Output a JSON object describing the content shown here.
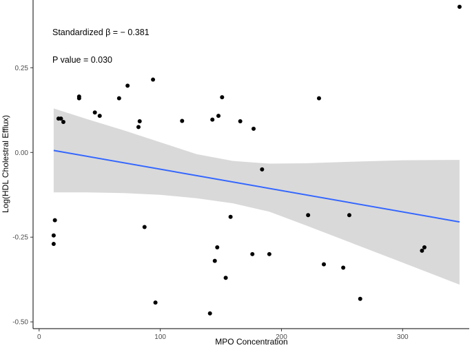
{
  "chart_data": {
    "type": "scatter",
    "title": "",
    "xlabel": "MPO Concentration",
    "ylabel": "Log(HDL Cholestral Efflux)",
    "xlim": [
      -5,
      355
    ],
    "ylim": [
      -0.52,
      0.45
    ],
    "x_ticks": [
      0,
      100,
      200,
      300
    ],
    "x_tick_labels": [
      "0",
      "100",
      "200",
      "300"
    ],
    "y_ticks": [
      0.25,
      0.0,
      -0.25,
      -0.5
    ],
    "y_tick_labels": [
      "0.25",
      "0.00",
      "-0.25",
      "-0.50"
    ],
    "grid": false,
    "annotations": [
      "Standardized β = − 0.381",
      "P value = 0.030"
    ],
    "colors": {
      "points": "#000000",
      "regression_line": "#3366ff",
      "confidence_band": "#d9d9d9"
    },
    "points": [
      {
        "x": 12,
        "y": -0.245
      },
      {
        "x": 12,
        "y": -0.27
      },
      {
        "x": 13,
        "y": -0.2
      },
      {
        "x": 16,
        "y": 0.1
      },
      {
        "x": 18,
        "y": 0.1
      },
      {
        "x": 20,
        "y": 0.09
      },
      {
        "x": 33,
        "y": 0.165
      },
      {
        "x": 33,
        "y": 0.16
      },
      {
        "x": 46,
        "y": 0.118
      },
      {
        "x": 50,
        "y": 0.108
      },
      {
        "x": 66,
        "y": 0.16
      },
      {
        "x": 73,
        "y": 0.197
      },
      {
        "x": 82,
        "y": 0.075
      },
      {
        "x": 83,
        "y": 0.092
      },
      {
        "x": 87,
        "y": -0.22
      },
      {
        "x": 94,
        "y": 0.215
      },
      {
        "x": 96,
        "y": -0.443
      },
      {
        "x": 118,
        "y": 0.093
      },
      {
        "x": 141,
        "y": -0.475
      },
      {
        "x": 143,
        "y": 0.097
      },
      {
        "x": 145,
        "y": -0.32
      },
      {
        "x": 147,
        "y": -0.28
      },
      {
        "x": 148,
        "y": 0.108
      },
      {
        "x": 151,
        "y": 0.163
      },
      {
        "x": 154,
        "y": -0.37
      },
      {
        "x": 158,
        "y": -0.19
      },
      {
        "x": 166,
        "y": 0.092
      },
      {
        "x": 176,
        "y": -0.3
      },
      {
        "x": 177,
        "y": 0.07
      },
      {
        "x": 184,
        "y": -0.05
      },
      {
        "x": 190,
        "y": -0.3
      },
      {
        "x": 222,
        "y": -0.185
      },
      {
        "x": 231,
        "y": 0.16
      },
      {
        "x": 235,
        "y": -0.33
      },
      {
        "x": 251,
        "y": -0.34
      },
      {
        "x": 256,
        "y": -0.185
      },
      {
        "x": 265,
        "y": -0.432
      },
      {
        "x": 316,
        "y": -0.29
      },
      {
        "x": 318,
        "y": -0.28
      },
      {
        "x": 347,
        "y": 0.43
      }
    ],
    "regression": {
      "line": [
        {
          "x": 12,
          "y": 0.006
        },
        {
          "x": 347,
          "y": -0.205
        }
      ],
      "band_upper": [
        {
          "x": 12,
          "y": 0.13
        },
        {
          "x": 40,
          "y": 0.098
        },
        {
          "x": 70,
          "y": 0.065
        },
        {
          "x": 100,
          "y": 0.03
        },
        {
          "x": 130,
          "y": -0.005
        },
        {
          "x": 160,
          "y": -0.025
        },
        {
          "x": 190,
          "y": -0.033
        },
        {
          "x": 220,
          "y": -0.032
        },
        {
          "x": 260,
          "y": -0.027
        },
        {
          "x": 300,
          "y": -0.023
        },
        {
          "x": 347,
          "y": -0.022
        }
      ],
      "band_lower": [
        {
          "x": 12,
          "y": -0.118
        },
        {
          "x": 40,
          "y": -0.118
        },
        {
          "x": 70,
          "y": -0.12
        },
        {
          "x": 100,
          "y": -0.125
        },
        {
          "x": 130,
          "y": -0.135
        },
        {
          "x": 160,
          "y": -0.15
        },
        {
          "x": 190,
          "y": -0.175
        },
        {
          "x": 220,
          "y": -0.215
        },
        {
          "x": 260,
          "y": -0.27
        },
        {
          "x": 300,
          "y": -0.325
        },
        {
          "x": 347,
          "y": -0.39
        }
      ]
    }
  }
}
